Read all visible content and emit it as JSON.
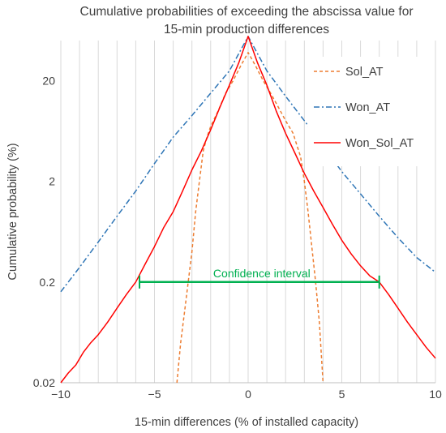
{
  "chart_data": {
    "type": "line",
    "title": "Cumulative probabilities of exceeding the abscissa value for 15-min production differences",
    "title_lines": [
      "Cumulative probabilities of exceeding the abscissa value for",
      "15-min production differences"
    ],
    "xlabel": "15-min differences (% of installed capacity)",
    "ylabel": "Cumulative probability (%)",
    "xlim": [
      -10,
      10
    ],
    "ylim": [
      0.02,
      50
    ],
    "yscale": "log",
    "x_ticks": [
      -10,
      -5,
      0,
      5,
      10
    ],
    "x_tick_labels": [
      "−10",
      "−5",
      "0",
      "5",
      "10"
    ],
    "y_ticks": [
      0.02,
      0.2,
      2,
      20
    ],
    "y_tick_labels": [
      "0.02",
      "0.2",
      "2",
      "20"
    ],
    "grid": "vertical",
    "legend_position": "top-right",
    "series": [
      {
        "name": "Sol_AT",
        "color": "#ED7D31",
        "dash": "dashed",
        "x": [
          -3.8,
          -3.6,
          -3.4,
          -3.2,
          -3.0,
          -2.8,
          -2.6,
          -2.4,
          -2.2,
          -2.0,
          -1.6,
          -1.2,
          -0.8,
          -0.4,
          0.0,
          0.4,
          0.8,
          1.2,
          1.6,
          2.0,
          2.4,
          2.8,
          3.0,
          3.2,
          3.4,
          3.6,
          3.8,
          4.0
        ],
        "y": [
          0.02,
          0.05,
          0.1,
          0.2,
          0.4,
          1.0,
          2.0,
          4.0,
          5.5,
          7.0,
          10.0,
          15.0,
          20.0,
          28.0,
          38.0,
          28.0,
          20.0,
          15.0,
          11.0,
          8.0,
          6.0,
          3.5,
          2.0,
          1.0,
          0.45,
          0.2,
          0.08,
          0.02
        ]
      },
      {
        "name": "Won_AT",
        "color": "#2E75B6",
        "dash": "dash-dot",
        "x": [
          -10,
          -9,
          -8,
          -7,
          -6,
          -5,
          -4,
          -3,
          -2,
          -1,
          0,
          1,
          2,
          3,
          4,
          5,
          6,
          7,
          8,
          9,
          10
        ],
        "y": [
          0.16,
          0.28,
          0.5,
          0.9,
          1.6,
          3.0,
          5.5,
          9.0,
          15.0,
          25.0,
          55.0,
          25.0,
          14.0,
          8.0,
          4.5,
          2.5,
          1.5,
          0.9,
          0.55,
          0.35,
          0.25
        ]
      },
      {
        "name": "Won_Sol_AT",
        "color": "#FF0000",
        "dash": "solid",
        "x": [
          -10.0,
          -9.6,
          -9.2,
          -8.8,
          -8.4,
          -8.0,
          -7.5,
          -7.0,
          -6.5,
          -6.0,
          -5.5,
          -5.0,
          -4.5,
          -4.0,
          -3.5,
          -3.0,
          -2.5,
          -2.0,
          -1.5,
          -1.0,
          -0.5,
          0.0,
          0.5,
          1.0,
          1.5,
          2.0,
          2.5,
          3.0,
          3.5,
          4.0,
          4.5,
          5.0,
          5.5,
          6.0,
          6.5,
          7.0,
          7.5,
          8.0,
          8.5,
          9.0,
          9.5,
          10.0
        ],
        "y": [
          0.02,
          0.025,
          0.03,
          0.04,
          0.05,
          0.06,
          0.08,
          0.11,
          0.15,
          0.2,
          0.3,
          0.45,
          0.7,
          1.0,
          1.6,
          2.6,
          4.0,
          6.5,
          11.0,
          18.0,
          30.0,
          55.0,
          30.0,
          18.0,
          10.0,
          6.0,
          3.8,
          2.4,
          1.6,
          1.1,
          0.75,
          0.52,
          0.38,
          0.29,
          0.23,
          0.2,
          0.15,
          0.11,
          0.08,
          0.06,
          0.045,
          0.035
        ]
      }
    ],
    "annotations": [
      {
        "text": "Confidence interval",
        "color": "#00B050",
        "x_start": -5.8,
        "x_end": 7.0,
        "y": 0.2
      }
    ]
  }
}
